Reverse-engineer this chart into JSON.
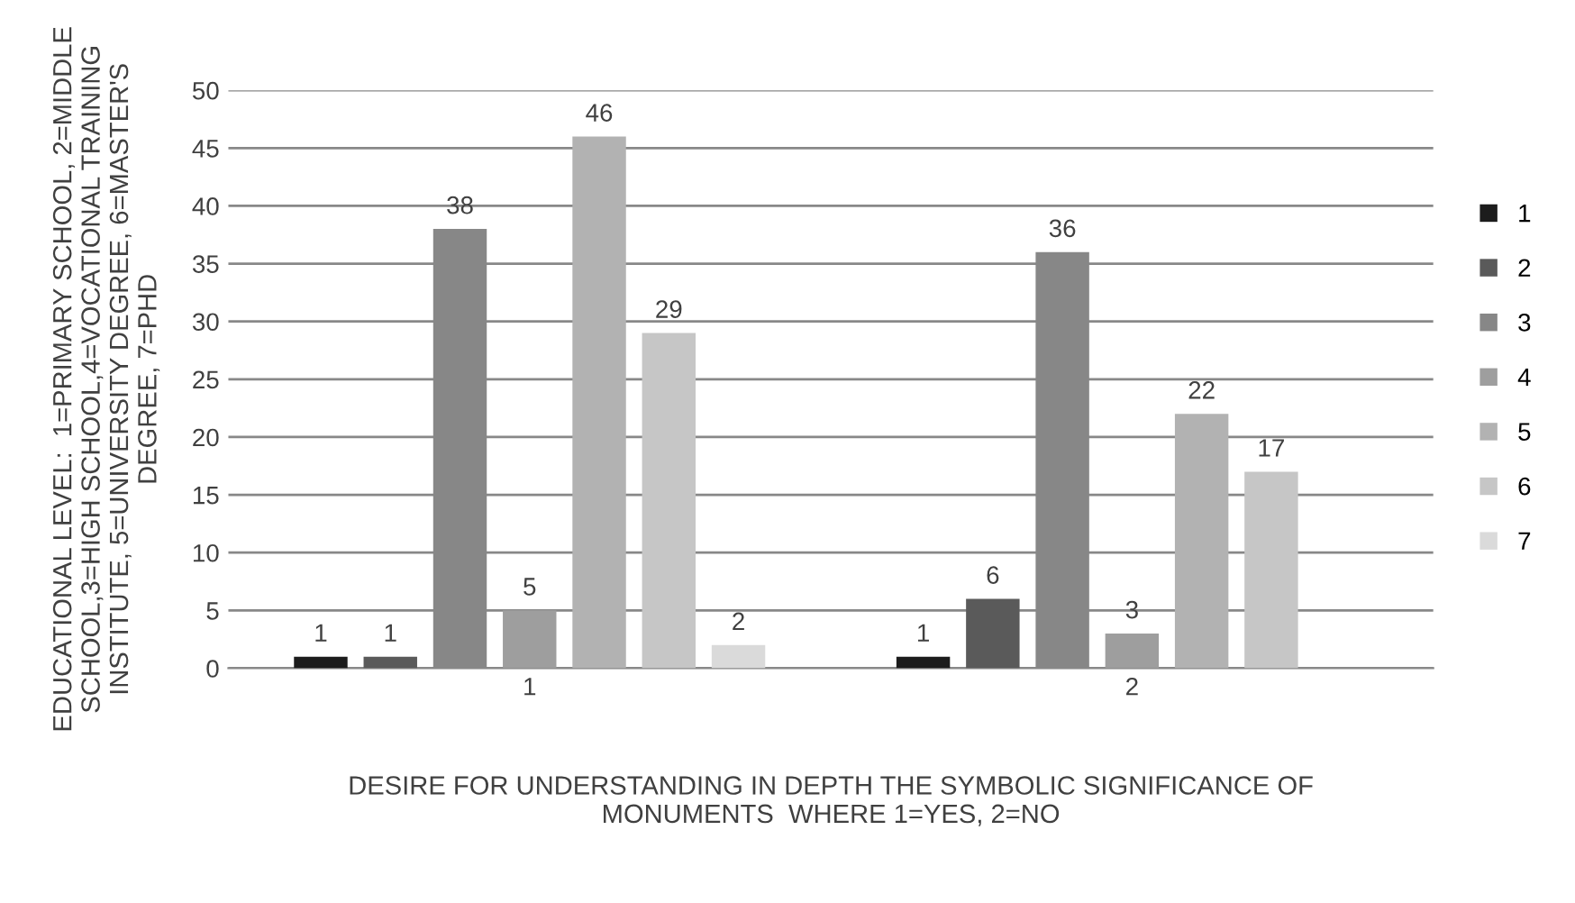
{
  "chart_data": {
    "type": "bar",
    "xlabel": "DESIRE FOR UNDERSTANDING IN DEPTH THE SYMBOLIC SIGNIFICANCE OF\nMONUMENTS  WHERE 1=YES, 2=NO",
    "ylabel": "EDUCATIONAL LEVEL:  1=PRIMARY SCHOOL, 2=MIDDLE\nSCHOOL,3=HIGH SCHOOL,4=VOCATIONAL TRAINING\nINSTITUTE, 5=UNIVERSITY DEGREE, 6=MASTER'S\nDEGREE, 7=PHD",
    "categories": [
      "1",
      "2"
    ],
    "series": [
      {
        "name": "1",
        "color": "#1c1c1c",
        "values": [
          1,
          1
        ]
      },
      {
        "name": "2",
        "color": "#5a5a5a",
        "values": [
          1,
          6
        ]
      },
      {
        "name": "3",
        "color": "#878787",
        "values": [
          38,
          36
        ]
      },
      {
        "name": "4",
        "color": "#9e9e9e",
        "values": [
          5,
          3
        ]
      },
      {
        "name": "5",
        "color": "#b2b2b2",
        "values": [
          46,
          22
        ]
      },
      {
        "name": "6",
        "color": "#c6c6c6",
        "values": [
          29,
          17
        ]
      },
      {
        "name": "7",
        "color": "#dadada",
        "values": [
          2,
          null
        ]
      }
    ],
    "ylim": [
      0,
      50
    ],
    "yticks": [
      0,
      5,
      10,
      15,
      20,
      25,
      30,
      35,
      40,
      45,
      50
    ],
    "grid": "y",
    "legend": "right",
    "data_labels": true
  }
}
